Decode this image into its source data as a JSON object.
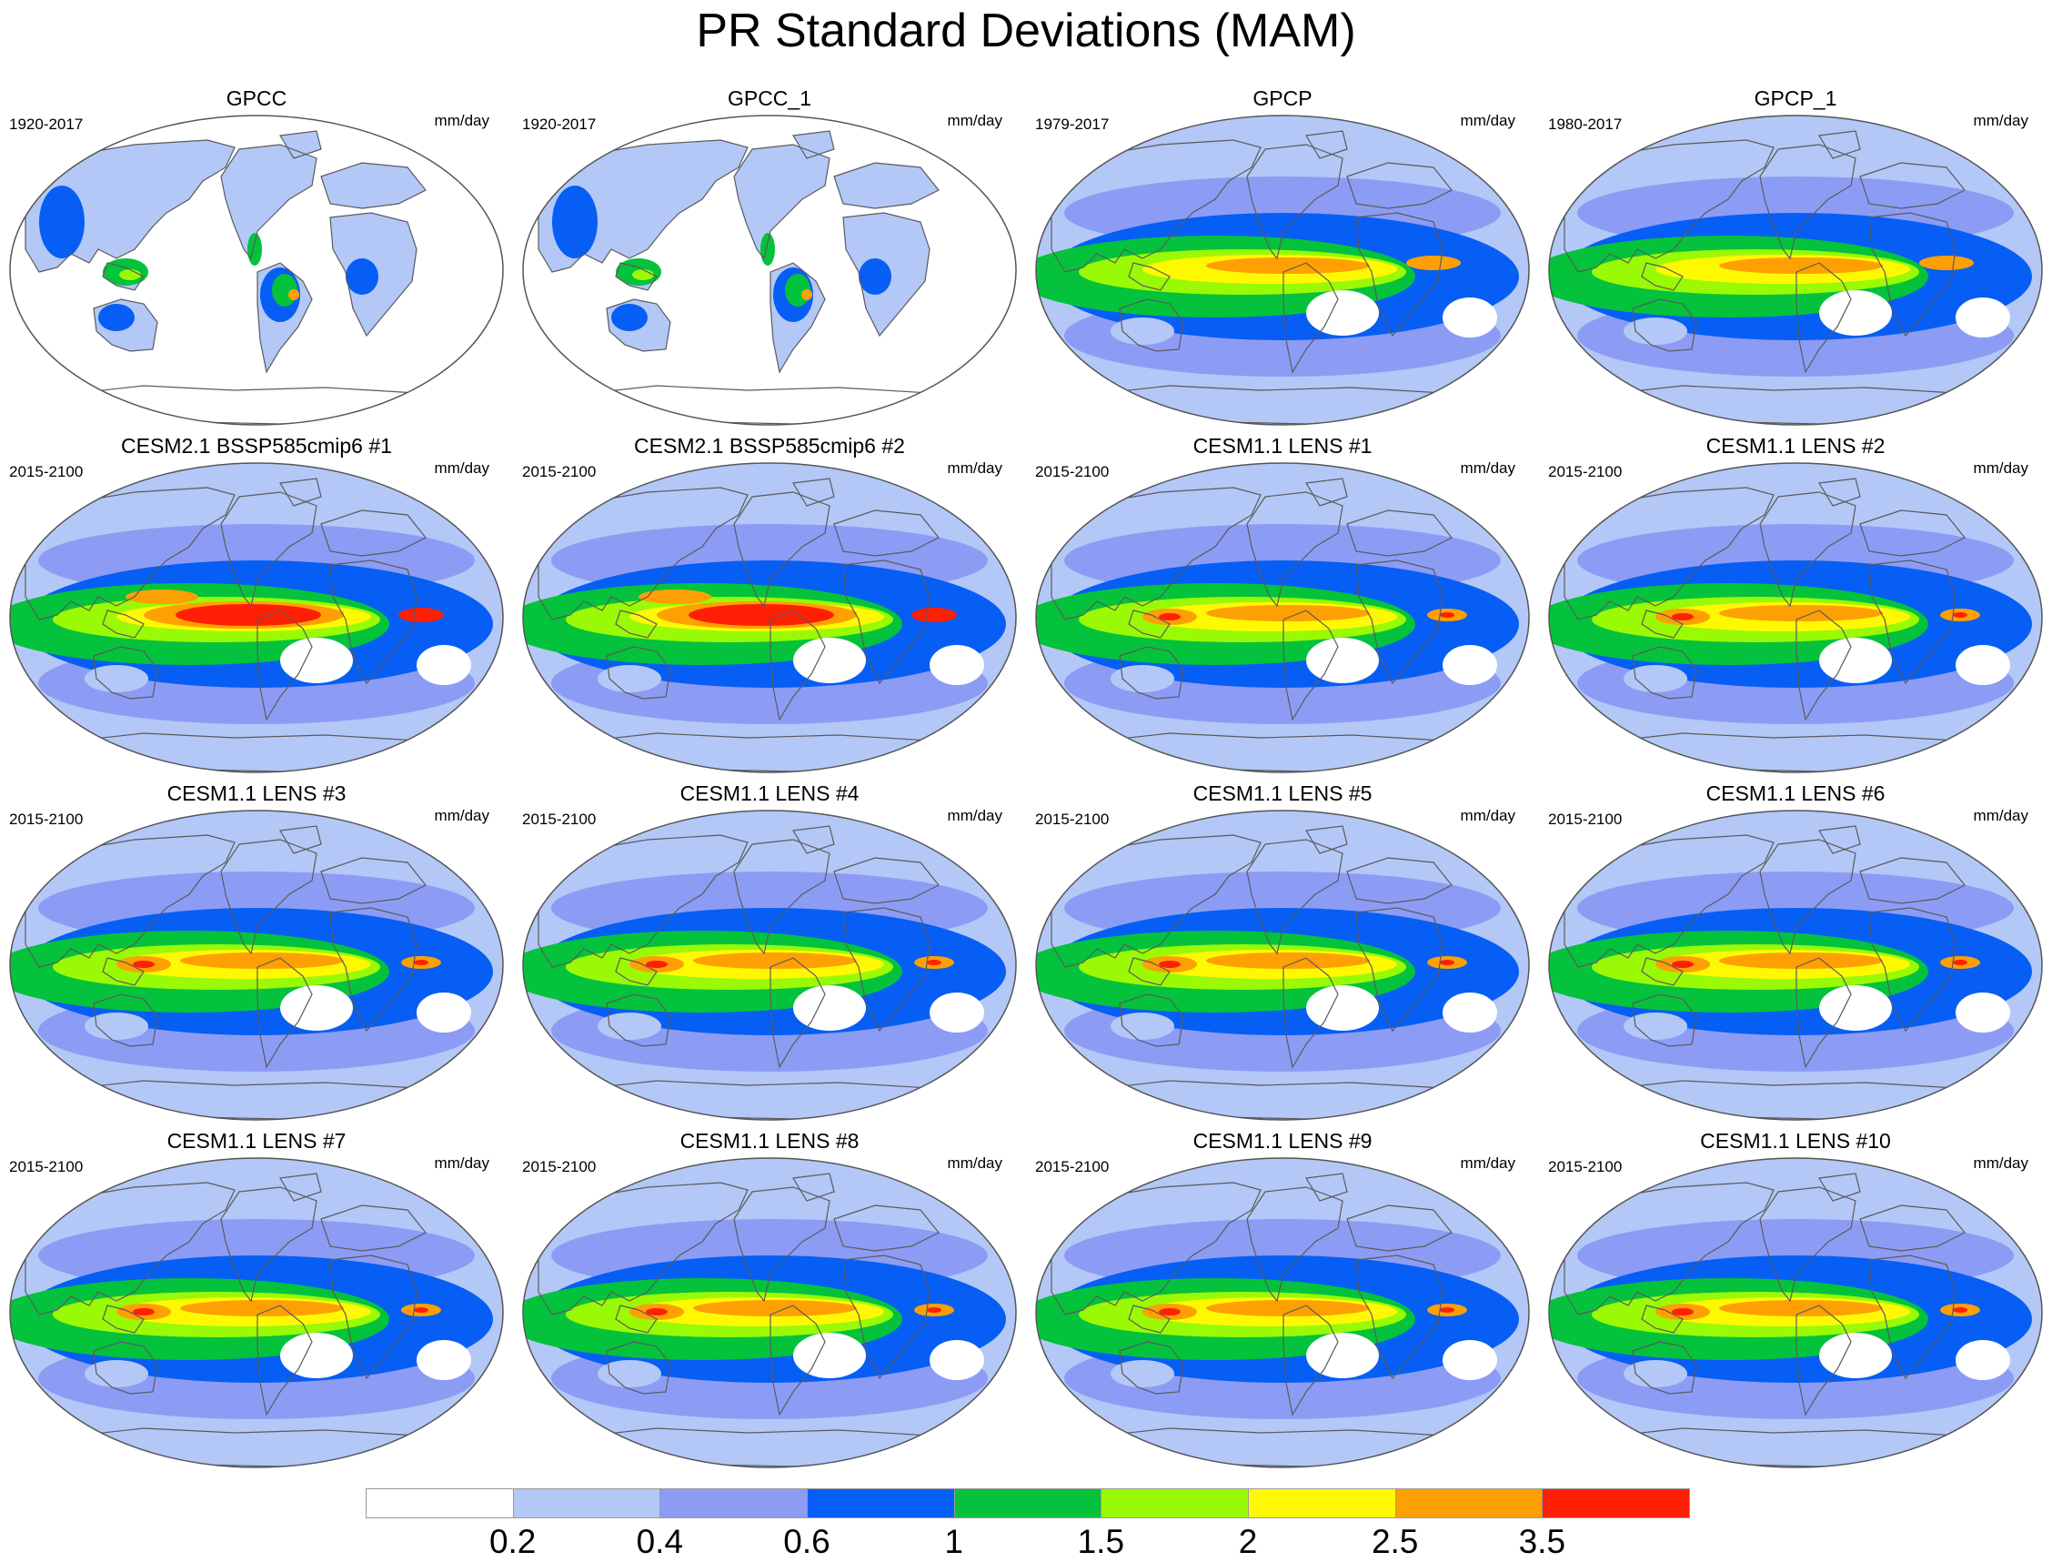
{
  "title": "PR Standard Deviations (MAM)",
  "panels": [
    {
      "title": "GPCC",
      "period": "1920-2017",
      "units": "mm/day",
      "kind": "land"
    },
    {
      "title": "GPCC_1",
      "period": "1920-2017",
      "units": "mm/day",
      "kind": "land"
    },
    {
      "title": "GPCP",
      "period": "1979-2017",
      "units": "mm/day",
      "kind": "obs"
    },
    {
      "title": "GPCP_1",
      "period": "1980-2017",
      "units": "mm/day",
      "kind": "obs"
    },
    {
      "title": "CESM2.1 BSSP585cmip6 #1",
      "period": "2015-2100",
      "units": "mm/day",
      "kind": "cesm2"
    },
    {
      "title": "CESM2.1 BSSP585cmip6 #2",
      "period": "2015-2100",
      "units": "mm/day",
      "kind": "cesm2"
    },
    {
      "title": "CESM1.1 LENS #1",
      "period": "2015-2100",
      "units": "mm/day",
      "kind": "lens"
    },
    {
      "title": "CESM1.1 LENS #2",
      "period": "2015-2100",
      "units": "mm/day",
      "kind": "lens"
    },
    {
      "title": "CESM1.1 LENS #3",
      "period": "2015-2100",
      "units": "mm/day",
      "kind": "lens"
    },
    {
      "title": "CESM1.1 LENS #4",
      "period": "2015-2100",
      "units": "mm/day",
      "kind": "lens"
    },
    {
      "title": "CESM1.1 LENS #5",
      "period": "2015-2100",
      "units": "mm/day",
      "kind": "lens"
    },
    {
      "title": "CESM1.1 LENS #6",
      "period": "2015-2100",
      "units": "mm/day",
      "kind": "lens"
    },
    {
      "title": "CESM1.1 LENS #7",
      "period": "2015-2100",
      "units": "mm/day",
      "kind": "lens"
    },
    {
      "title": "CESM1.1 LENS #8",
      "period": "2015-2100",
      "units": "mm/day",
      "kind": "lens"
    },
    {
      "title": "CESM1.1 LENS #9",
      "period": "2015-2100",
      "units": "mm/day",
      "kind": "lens"
    },
    {
      "title": "CESM1.1 LENS #10",
      "period": "2015-2100",
      "units": "mm/day",
      "kind": "lens"
    }
  ],
  "colorbar": {
    "labels": [
      "0.2",
      "0.4",
      "0.6",
      "1",
      "1.5",
      "2",
      "2.5",
      "3.5"
    ],
    "colors": [
      "#ffffff",
      "#b3c8f6",
      "#8c9cf5",
      "#075ef4",
      "#05c23c",
      "#9af905",
      "#fef903",
      "#fea004",
      "#ff1f04"
    ]
  }
}
